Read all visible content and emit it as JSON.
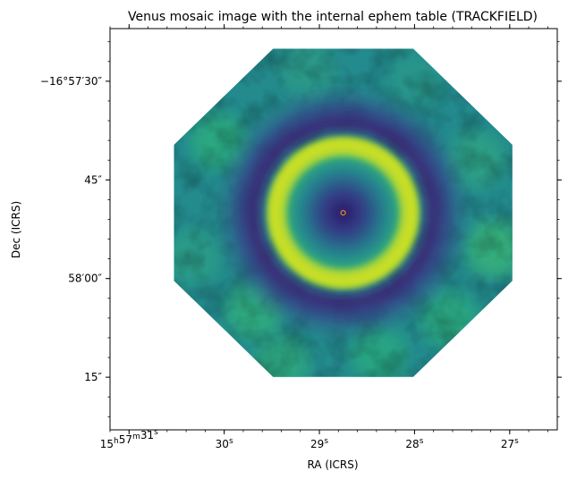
{
  "chart_data": {
    "type": "heatmap",
    "title": "Venus mosaic image with the internal ephem table (TRACKFIELD)",
    "xlabel": "RA (ICRS)",
    "ylabel": "Dec (ICRS)",
    "x_ticks": [
      {
        "label": "15h57m31s",
        "parts": [
          [
            "15",
            "h"
          ],
          [
            "57",
            "m"
          ],
          [
            "31",
            "s"
          ]
        ],
        "value_s": 31
      },
      {
        "label": "30s",
        "parts": [
          [
            "30",
            "s"
          ]
        ],
        "value_s": 30
      },
      {
        "label": "29s",
        "parts": [
          [
            "29",
            "s"
          ]
        ],
        "value_s": 29
      },
      {
        "label": "28s",
        "parts": [
          [
            "28",
            "s"
          ]
        ],
        "value_s": 28
      },
      {
        "label": "27s",
        "parts": [
          [
            "27",
            "s"
          ]
        ],
        "value_s": 27
      }
    ],
    "y_ticks": [
      {
        "label": "−16°57′30″",
        "value_arcsec": 30
      },
      {
        "label": "45″",
        "value_arcsec": 45
      },
      {
        "label": "58′00″",
        "value_arcsec": 60
      },
      {
        "label": "15″",
        "value_arcsec": 75
      }
    ],
    "xlim_s": [
      31.2,
      26.5
    ],
    "ylim_arcsec": [
      22,
      83
    ],
    "colormap": "viridis",
    "grid": false,
    "features": {
      "disk_center": {
        "ra_s": 28.75,
        "dec_arcsec": 50
      },
      "disk_radius_arcsec": 11.5,
      "ring_width_arcsec": 2.6,
      "dark_halo_radius_arcsec": 16,
      "mosaic_extent_arcsec": 27,
      "center_marker_color": "#e08a2c"
    }
  }
}
